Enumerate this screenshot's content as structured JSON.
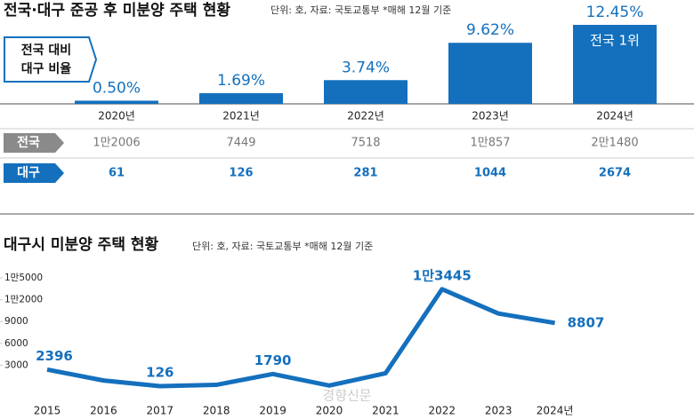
{
  "chart_data": [
    {
      "type": "bar",
      "title": "전국·대구 준공 후 미분양 주택 현황",
      "subtitle": "단위: 호, 자료: 국토교통부  *매해 12월 기준",
      "annotations": {
        "ratio_label": [
          "전국 대비",
          "대구 비율"
        ],
        "top_note": "전국 1위"
      },
      "categories": [
        "2020년",
        "2021년",
        "2022년",
        "2023년",
        "2024년"
      ],
      "values": [
        0.5,
        1.69,
        3.74,
        9.62,
        12.45
      ],
      "value_labels": [
        "0.50%",
        "1.69%",
        "3.74%",
        "9.62%",
        "12.45%"
      ],
      "color": "#1470bd",
      "table": {
        "rows": [
          {
            "label": "전국",
            "cells": [
              "1만2006",
              "7449",
              "7518",
              "1만857",
              "2만1480"
            ]
          },
          {
            "label": "대구",
            "cells": [
              "61",
              "126",
              "281",
              "1044",
              "2674"
            ]
          }
        ]
      }
    },
    {
      "type": "line",
      "title": "대구시 미분양 주택 현황",
      "subtitle": "단위: 호, 자료: 국토교통부  *매해 12월 기준",
      "categories": [
        "2015",
        "2016",
        "2017",
        "2018",
        "2019",
        "2020",
        "2021",
        "2022",
        "2023",
        "2024년"
      ],
      "values": [
        2396,
        900,
        126,
        300,
        1790,
        200,
        1900,
        13445,
        10100,
        8807
      ],
      "value_labels": [
        "2396",
        null,
        "126",
        null,
        "1790",
        null,
        null,
        "1만3445",
        null,
        "8807"
      ],
      "color": "#1470bd",
      "ylim": [
        0,
        16000
      ],
      "yticks": [
        3000,
        6000,
        9000,
        {
          "value": 12000,
          "label": "1만2000"
        },
        {
          "value": 15000,
          "label": "1만5000"
        }
      ],
      "watermark": "경향신문"
    }
  ]
}
